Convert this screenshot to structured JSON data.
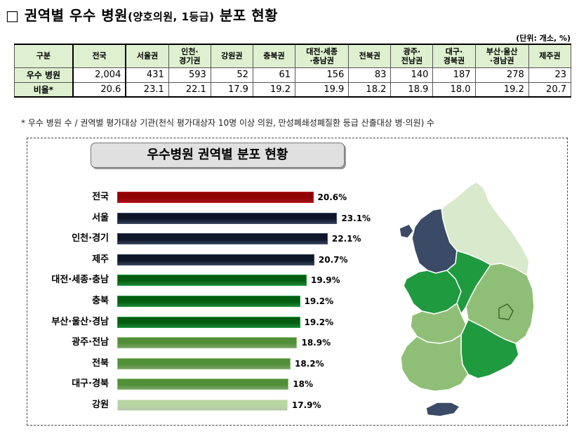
{
  "title": {
    "main": "□ 권역별 우수 병원",
    "paren": "(양호의원, 1등급)",
    "tail": " 분포 현황"
  },
  "unit": "(단위: 개소, %)",
  "table": {
    "headers": [
      "구분",
      "전국",
      "서울권",
      "인천·\n경기권",
      "강원권",
      "충북권",
      "대전·세종\n·충남권",
      "전북권",
      "광주·\n전남권",
      "대구·\n경북권",
      "부산·울산\n·경남권",
      "제주권"
    ],
    "rows": [
      {
        "label": "우수 병원",
        "values": [
          "2,004",
          "431",
          "593",
          "52",
          "61",
          "156",
          "83",
          "140",
          "187",
          "278",
          "23"
        ]
      },
      {
        "label": "비율*",
        "values": [
          "20.6",
          "23.1",
          "22.1",
          "17.9",
          "19.2",
          "19.9",
          "18.2",
          "18.9",
          "18.0",
          "19.2",
          "20.7"
        ]
      }
    ]
  },
  "footnote": "* 우수 병원 수 / 권역별 평가대상 기관(천식 평가대상자 10명 이상 의원, 만성폐쇄성폐질환 등급 산출대상 병·의원) 수",
  "chart_data": {
    "type": "bar",
    "title": "우수병원 권역별 분포 현황",
    "orientation": "horizontal",
    "categories": [
      "전국",
      "서울",
      "인천·경기",
      "제주",
      "대전·세종·충남",
      "충북",
      "부산·울산·경남",
      "광주·전남",
      "전북",
      "대구·경북",
      "강원"
    ],
    "values": [
      20.6,
      23.1,
      22.1,
      20.7,
      19.9,
      19.2,
      19.2,
      18.9,
      18.2,
      18.0,
      17.9
    ],
    "value_labels": [
      "20.6%",
      "23.1%",
      "22.1%",
      "20.7%",
      "19.9%",
      "19.2%",
      "19.2%",
      "18.9%",
      "18.2%",
      "18%",
      "17.9%"
    ],
    "colors": [
      "#c0141c",
      "#3b4a66",
      "#3b4a66",
      "#3b4a66",
      "#1f9a3f",
      "#1f9a3f",
      "#1f9a3f",
      "#8fbf76",
      "#8fbf76",
      "#8fbf76",
      "#d9e9cc"
    ],
    "grid": false,
    "legend": "none"
  },
  "map_colors": {
    "navy": "#3b4a66",
    "green": "#1f9a3f",
    "light_green": "#8fbf76",
    "pale_green": "#d9e9cc"
  }
}
